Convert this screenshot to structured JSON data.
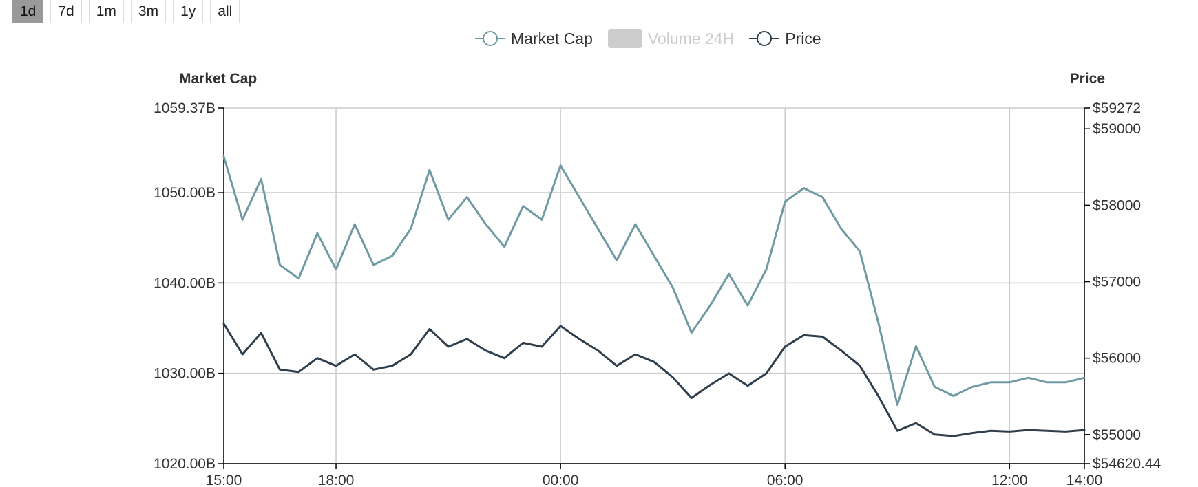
{
  "range_buttons": [
    {
      "label": "1d",
      "active": true
    },
    {
      "label": "7d",
      "active": false
    },
    {
      "label": "1m",
      "active": false
    },
    {
      "label": "3m",
      "active": false
    },
    {
      "label": "1y",
      "active": false
    },
    {
      "label": "all",
      "active": false
    }
  ],
  "legend": [
    {
      "name": "Market Cap",
      "color": "#6f9aa3",
      "visible": true
    },
    {
      "name": "Volume 24H",
      "color": "#cccccc",
      "visible": false
    },
    {
      "name": "Price",
      "color": "#2f3e4c",
      "visible": true
    }
  ],
  "chart_data": {
    "type": "line",
    "x_ticks": [
      "15:00",
      "18:00",
      "00:00",
      "06:00",
      "12:00",
      "14:00"
    ],
    "x_tick_hours": [
      0,
      3,
      9,
      15,
      21,
      23
    ],
    "x_range_hours": [
      0,
      23
    ],
    "left_axis": {
      "title": "Market Cap",
      "ticks": [
        "1059.37B",
        "1050.00B",
        "1040.00B",
        "1030.00B",
        "1020.00B"
      ],
      "tick_values": [
        1059.37,
        1050,
        1040,
        1030,
        1020
      ],
      "range": [
        1020,
        1059.37
      ]
    },
    "right_axis": {
      "title": "Price",
      "ticks": [
        "$59272",
        "$59000",
        "$58000",
        "$57000",
        "$56000",
        "$55000",
        "$54620.44"
      ],
      "tick_values": [
        59272,
        59000,
        58000,
        57000,
        56000,
        55000,
        54620.44
      ],
      "range": [
        54620.44,
        59272
      ]
    },
    "grid": true,
    "legend_position": "top-center",
    "series": [
      {
        "name": "Market Cap",
        "axis": "left",
        "x_hours": [
          0,
          0.5,
          1,
          1.5,
          2,
          2.5,
          3,
          3.5,
          4,
          4.5,
          5,
          5.5,
          6,
          6.5,
          7,
          7.5,
          8,
          8.5,
          9,
          9.5,
          10,
          10.5,
          11,
          11.5,
          12,
          12.5,
          13,
          13.5,
          14,
          14.5,
          15,
          15.5,
          16,
          16.5,
          17,
          17.5,
          18,
          18.5,
          19,
          19.5,
          20,
          20.5,
          21,
          21.5,
          22,
          22.5,
          23
        ],
        "values": [
          1054,
          1047,
          1051.5,
          1042,
          1040.5,
          1045.5,
          1041.5,
          1046.5,
          1042,
          1043,
          1046,
          1052.5,
          1047,
          1049.5,
          1046.5,
          1044,
          1048.5,
          1047,
          1053,
          1049.5,
          1046,
          1042.5,
          1046.5,
          1043,
          1039.5,
          1034.5,
          1037.5,
          1041,
          1037.5,
          1041.5,
          1049,
          1050.5,
          1049.5,
          1046,
          1043.5,
          1035.5,
          1026.5,
          1033,
          1028.5,
          1027.5,
          1028.5,
          1029,
          1029,
          1029.5,
          1029,
          1029,
          1029.5
        ]
      },
      {
        "name": "Price",
        "axis": "right",
        "x_hours": [
          0,
          0.5,
          1,
          1.5,
          2,
          2.5,
          3,
          3.5,
          4,
          4.5,
          5,
          5.5,
          6,
          6.5,
          7,
          7.5,
          8,
          8.5,
          9,
          9.5,
          10,
          10.5,
          11,
          11.5,
          12,
          12.5,
          13,
          13.5,
          14,
          14.5,
          15,
          15.5,
          16,
          16.5,
          17,
          17.5,
          18,
          18.5,
          19,
          19.5,
          20,
          20.5,
          21,
          21.5,
          22,
          22.5,
          23
        ],
        "values": [
          56450,
          56050,
          56330,
          55850,
          55820,
          56000,
          55900,
          56050,
          55850,
          55900,
          56050,
          56380,
          56150,
          56250,
          56100,
          56000,
          56200,
          56150,
          56420,
          56250,
          56100,
          55900,
          56050,
          55950,
          55750,
          55480,
          55650,
          55800,
          55640,
          55800,
          56150,
          56300,
          56280,
          56100,
          55900,
          55500,
          55050,
          55150,
          55000,
          54980,
          55020,
          55050,
          55040,
          55060,
          55050,
          55040,
          55060
        ]
      }
    ]
  }
}
